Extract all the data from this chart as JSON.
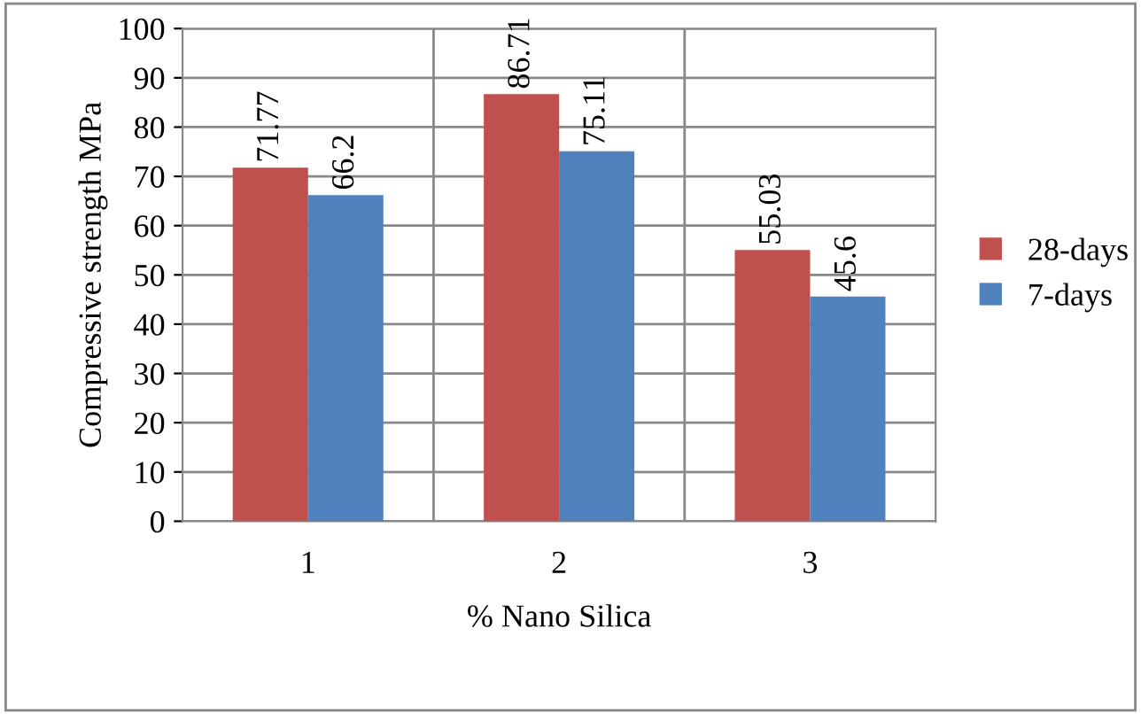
{
  "chart_data": {
    "type": "bar",
    "xlabel": "% Nano Silica",
    "ylabel": "Compressive strength MPa",
    "categories": [
      "1",
      "2",
      "3"
    ],
    "series": [
      {
        "name": "28-days",
        "color": "#c0504d",
        "values": [
          71.77,
          86.71,
          55.03
        ]
      },
      {
        "name": "7-days",
        "color": "#4f81bd",
        "values": [
          66.2,
          75.11,
          45.6
        ]
      }
    ],
    "ylim": [
      0,
      100
    ],
    "yticks": [
      0,
      10,
      20,
      30,
      40,
      50,
      60,
      70,
      80,
      90,
      100
    ],
    "grid": true,
    "legend": "right",
    "data_labels": true
  }
}
